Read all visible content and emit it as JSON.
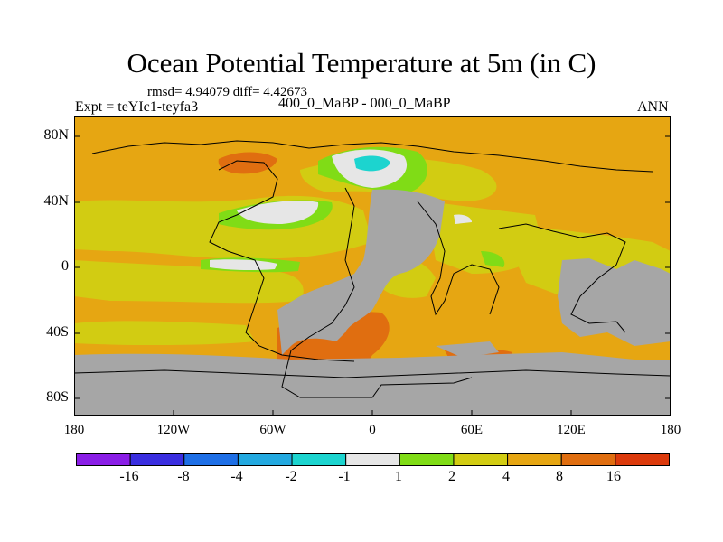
{
  "title": "Ocean Potential Temperature at 5m (in C)",
  "stats": "rmsd= 4.94079 diff= 4.42673",
  "experiment": "Expt = teYIc1-teyfa3",
  "subtitle": "400_0_MaBP - 000_0_MaBP",
  "season": "ANN",
  "lat_labels": [
    "80N",
    "40N",
    "0",
    "40S",
    "80S"
  ],
  "lon_labels": [
    "180",
    "120W",
    "60W",
    "0",
    "60E",
    "120E",
    "180"
  ],
  "colorbar": {
    "labels": [
      "-16",
      "-8",
      "-4",
      "-2",
      "-1",
      "1",
      "2",
      "4",
      "8",
      "16"
    ],
    "colors": [
      "#8a1ee6",
      "#3a2ee0",
      "#1e6fe6",
      "#23a9e0",
      "#1cd4cf",
      "#e6e6e6",
      "#80dc16",
      "#d2cc12",
      "#e6a612",
      "#e06e10",
      "#dc3a0c"
    ]
  },
  "map_colors": {
    "land": "#a6a6a6",
    "ocean_dominant": "#e6a612",
    "coastline": "#000000"
  }
}
